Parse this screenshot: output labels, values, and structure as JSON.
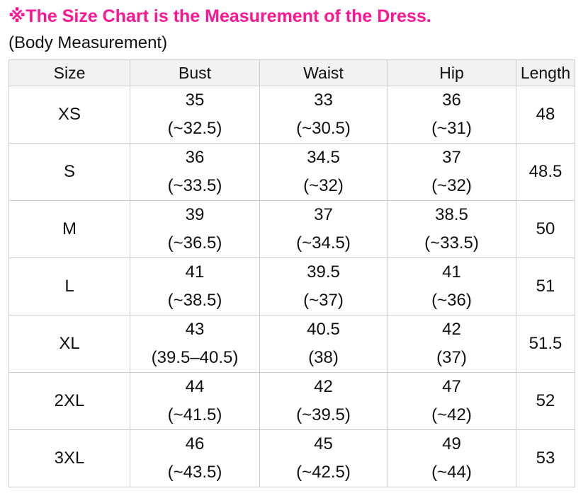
{
  "colors": {
    "accent_pink": "#ff1493",
    "header_bg": "#f2f2f2",
    "border": "#cccccc"
  },
  "page": {
    "title": "※The Size Chart is the Measurement of the Dress.",
    "subtitle": "(Body Measurement)"
  },
  "table": {
    "headers": [
      "Size",
      "Bust",
      "Waist",
      "Hip",
      "Length"
    ],
    "rows": [
      {
        "size": "XS",
        "bust": [
          "35",
          "(~32.5)"
        ],
        "waist": [
          "33",
          "(~30.5)"
        ],
        "hip": [
          "36",
          "(~31)"
        ],
        "length": "48"
      },
      {
        "size": "S",
        "bust": [
          "36",
          "(~33.5)"
        ],
        "waist": [
          "34.5",
          "(~32)"
        ],
        "hip": [
          "37",
          "(~32)"
        ],
        "length": "48.5"
      },
      {
        "size": "M",
        "bust": [
          "39",
          "(~36.5)"
        ],
        "waist": [
          "37",
          "(~34.5)"
        ],
        "hip": [
          "38.5",
          "(~33.5)"
        ],
        "length": "50"
      },
      {
        "size": "L",
        "bust": [
          "41",
          "(~38.5)"
        ],
        "waist": [
          "39.5",
          "(~37)"
        ],
        "hip": [
          "41",
          "(~36)"
        ],
        "length": "51"
      },
      {
        "size": "XL",
        "bust": [
          "43",
          "(39.5–40.5)"
        ],
        "waist": [
          "40.5",
          "(38)"
        ],
        "hip": [
          "42",
          "(37)"
        ],
        "length": "51.5"
      },
      {
        "size": "2XL",
        "bust": [
          "44",
          "(~41.5)"
        ],
        "waist": [
          "42",
          "(~39.5)"
        ],
        "hip": [
          "47",
          "(~42)"
        ],
        "length": "52"
      },
      {
        "size": "3XL",
        "bust": [
          "46",
          "(~43.5)"
        ],
        "waist": [
          "45",
          "(~42.5)"
        ],
        "hip": [
          "49",
          "(~44)"
        ],
        "length": "53"
      }
    ]
  }
}
